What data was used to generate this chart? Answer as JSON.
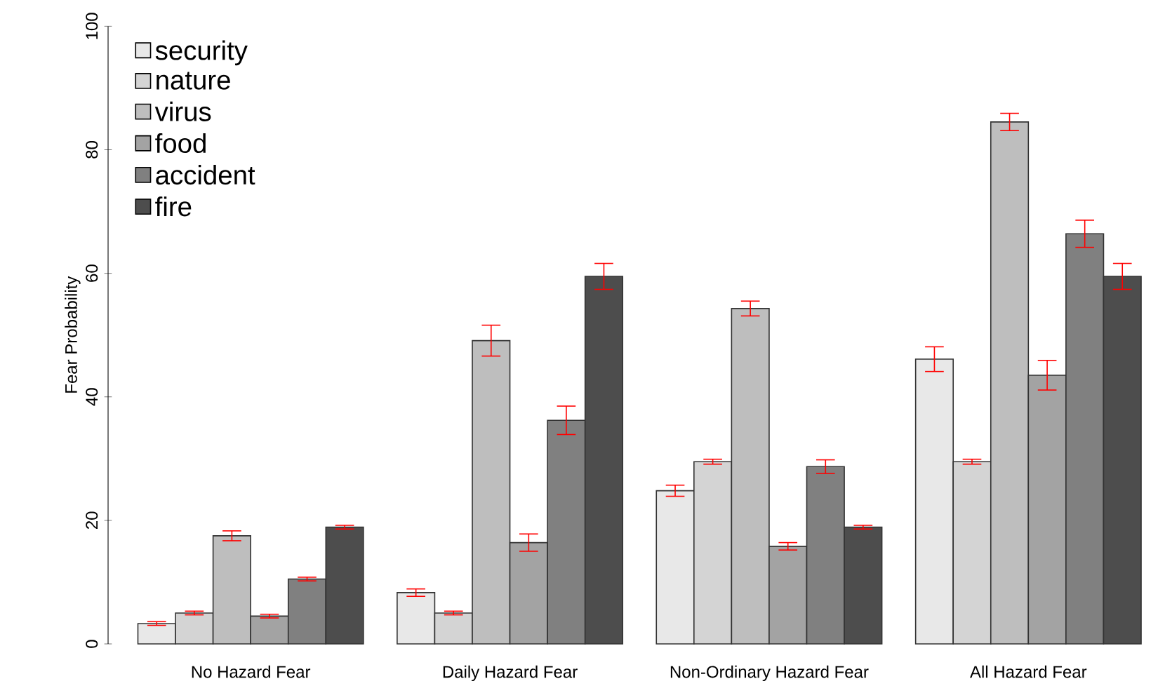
{
  "chart_data": {
    "type": "bar",
    "ylabel": "Fear Probability",
    "categories": [
      "No Hazard Fear",
      "Daily Hazard Fear",
      "Non-Ordinary Hazard Fear",
      "All Hazard Fear"
    ],
    "series": [
      {
        "name": "security",
        "color": "#e8e8e8",
        "values": [
          3.3,
          8.3,
          24.8,
          46.1
        ],
        "errors": [
          0.3,
          0.6,
          0.9,
          2.0
        ]
      },
      {
        "name": "nature",
        "color": "#d4d4d4",
        "values": [
          5.0,
          5.0,
          29.5,
          29.5
        ],
        "errors": [
          0.3,
          0.3,
          0.4,
          0.4
        ]
      },
      {
        "name": "virus",
        "color": "#bebebe",
        "values": [
          17.5,
          49.1,
          54.3,
          84.5
        ],
        "errors": [
          0.8,
          2.5,
          1.2,
          1.4
        ]
      },
      {
        "name": "food",
        "color": "#a3a3a3",
        "values": [
          4.5,
          16.4,
          15.8,
          43.5
        ],
        "errors": [
          0.3,
          1.4,
          0.6,
          2.4
        ]
      },
      {
        "name": "accident",
        "color": "#808080",
        "values": [
          10.5,
          36.2,
          28.7,
          66.4
        ],
        "errors": [
          0.3,
          2.3,
          1.1,
          2.2
        ]
      },
      {
        "name": "fire",
        "color": "#4d4d4d",
        "values": [
          18.9,
          59.5,
          18.9,
          59.5
        ],
        "errors": [
          0.3,
          2.1,
          0.3,
          2.1
        ]
      }
    ],
    "ylim": [
      0,
      100
    ],
    "yticks": [
      0,
      20,
      40,
      60,
      80,
      100
    ],
    "legend": "top left"
  }
}
